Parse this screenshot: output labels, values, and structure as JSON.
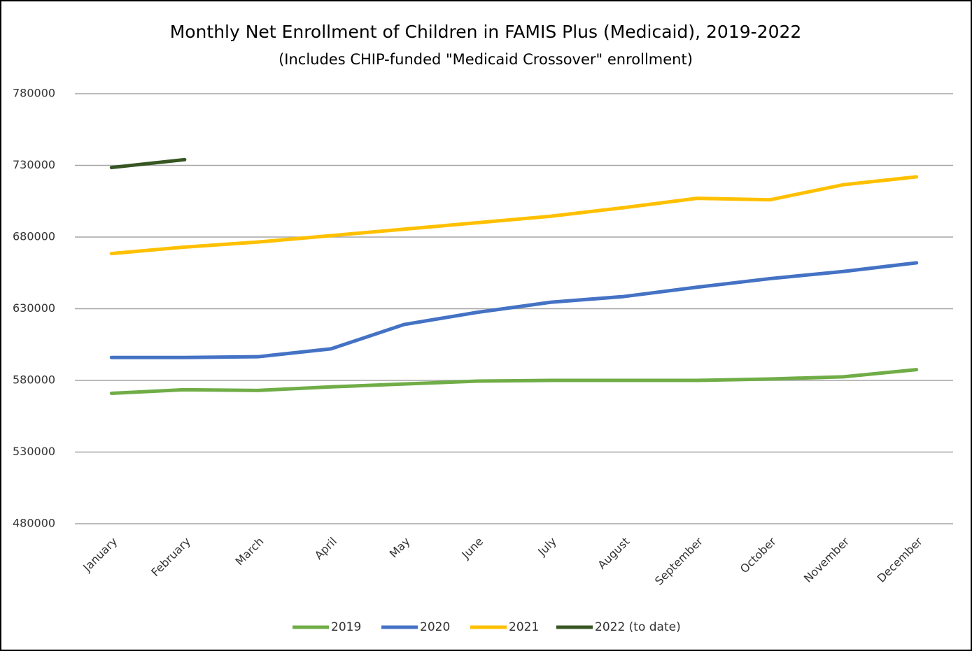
{
  "chart_data": {
    "type": "line",
    "title": "Monthly Net Enrollment of Children in FAMIS Plus (Medicaid), 2019-2022",
    "subtitle": "(Includes CHIP-funded \"Medicaid Crossover\" enrollment)",
    "categories": [
      "January",
      "February",
      "March",
      "April",
      "May",
      "June",
      "July",
      "August",
      "September",
      "October",
      "November",
      "December"
    ],
    "series": [
      {
        "name": "2019",
        "color": "#70ad47",
        "values": [
          571000,
          573500,
          573000,
          575500,
          577500,
          579500,
          580000,
          580000,
          580000,
          581000,
          582500,
          587500
        ]
      },
      {
        "name": "2020",
        "color": "#4472c4",
        "values": [
          596000,
          596000,
          596500,
          602000,
          619000,
          627500,
          634500,
          638500,
          645000,
          651000,
          656000,
          662000
        ]
      },
      {
        "name": "2021",
        "color": "#ffc000",
        "values": [
          668500,
          673000,
          676500,
          681000,
          685500,
          690000,
          694500,
          700500,
          707000,
          706000,
          716500,
          722000
        ]
      },
      {
        "name": "2022 (to date)",
        "color": "#375623",
        "values": [
          728500,
          734000,
          null,
          null,
          null,
          null,
          null,
          null,
          null,
          null,
          null,
          null
        ]
      }
    ],
    "ylim": [
      480000,
      780000
    ],
    "yticks": [
      480000,
      530000,
      580000,
      630000,
      680000,
      730000,
      780000
    ],
    "grid": true,
    "legend": "bottom"
  }
}
